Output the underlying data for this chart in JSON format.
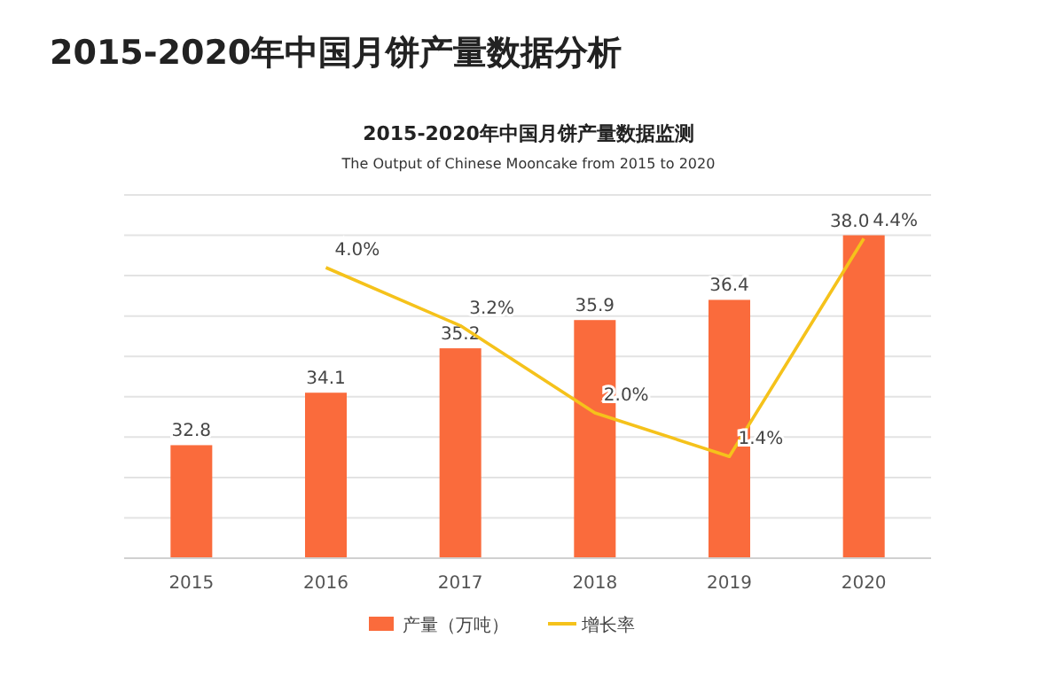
{
  "chart_data": {
    "type": "bar",
    "title": "2015-2020年中国月饼产量数据分析",
    "subtitle": "2015-2020年中国月饼产量数据监测",
    "annotations": [
      "The  Output of Chinese Mooncake from 2015 to 2020"
    ],
    "categories": [
      "2015",
      "2016",
      "2017",
      "2018",
      "2019",
      "2020"
    ],
    "series": [
      {
        "name": "产量（万吨）",
        "color": "#fa6b3c",
        "values": [
          32.8,
          34.1,
          35.2,
          35.9,
          36.4,
          38.0
        ],
        "value_labels": [
          "32.8",
          "34.1",
          "35.2",
          "35.9",
          "36.4",
          "38.0"
        ]
      },
      {
        "name": "增长率",
        "type": "line",
        "axis": "y2",
        "color": "#f5c21b",
        "values": [
          null,
          4.0,
          3.2,
          2.0,
          1.4,
          4.4
        ],
        "value_labels": [
          null,
          "4.0%",
          "3.2%",
          "2.0%",
          "1.4%",
          "4.4%"
        ]
      }
    ],
    "ylim": [
      30,
      39
    ],
    "yticks": [
      {
        "value": 30,
        "label": null
      },
      {
        "value": 31,
        "label": null
      },
      {
        "value": 32,
        "label": null
      },
      {
        "value": 33,
        "label": null
      },
      {
        "value": 34,
        "label": null
      },
      {
        "value": 35,
        "label": null
      },
      {
        "value": 36,
        "label": null
      },
      {
        "value": 37,
        "label": null
      },
      {
        "value": 38,
        "label": null
      },
      {
        "value": 39,
        "label": null
      }
    ],
    "y2lim": [
      0,
      5
    ],
    "data_labels": true,
    "grid": "y",
    "legend": "bottom",
    "marker": "none",
    "line_style": "solid"
  }
}
